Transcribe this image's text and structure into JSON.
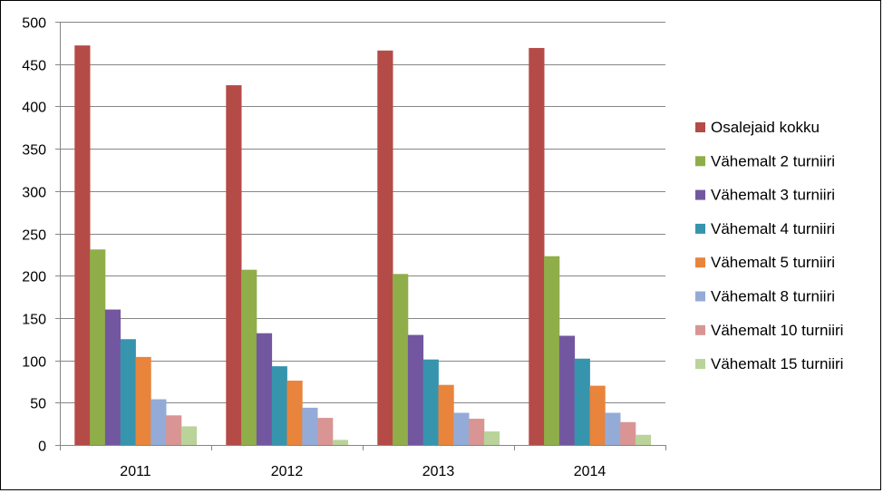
{
  "chart_data": {
    "type": "bar",
    "title": "",
    "xlabel": "",
    "ylabel": "",
    "categories": [
      "2011",
      "2012",
      "2013",
      "2014"
    ],
    "ylim": [
      0,
      500
    ],
    "yticks": [
      0,
      50,
      100,
      150,
      200,
      250,
      300,
      350,
      400,
      450,
      500
    ],
    "grid": true,
    "legend_position": "right",
    "series": [
      {
        "name": "Osalejaid kokku",
        "color": "#B54B47",
        "values": [
          472,
          425,
          466,
          469
        ]
      },
      {
        "name": "Vähemalt 2 turniiri",
        "color": "#8FAE4A",
        "values": [
          231,
          207,
          202,
          223
        ]
      },
      {
        "name": "Vähemalt 3 turniiri",
        "color": "#7257A0",
        "values": [
          160,
          132,
          130,
          129
        ]
      },
      {
        "name": "Vähemalt 4 turniiri",
        "color": "#3794AD",
        "values": [
          125,
          93,
          101,
          102
        ]
      },
      {
        "name": "Vähemalt 5 turniiri",
        "color": "#E8843C",
        "values": [
          104,
          76,
          71,
          70
        ]
      },
      {
        "name": "Vähemalt 8 turniiri",
        "color": "#94ABD8",
        "values": [
          54,
          44,
          38,
          38
        ]
      },
      {
        "name": "Vähemalt 10 turniiri",
        "color": "#D89594",
        "values": [
          35,
          32,
          31,
          27
        ]
      },
      {
        "name": "Vähemalt 15 turniiri",
        "color": "#B9D39A",
        "values": [
          22,
          6,
          16,
          12
        ]
      }
    ]
  }
}
